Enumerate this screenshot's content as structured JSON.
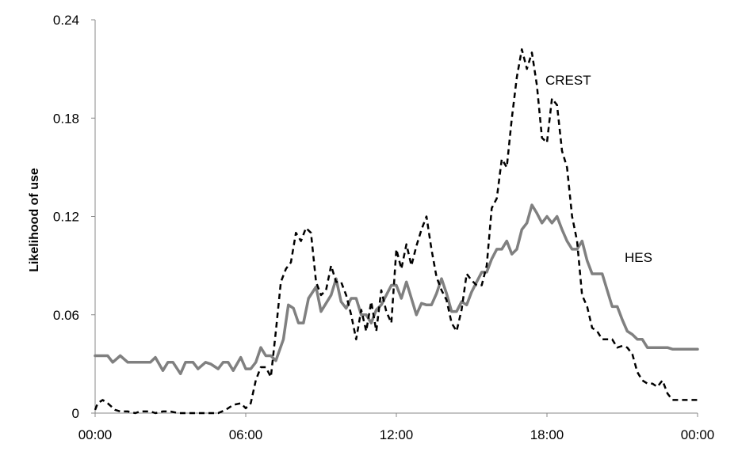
{
  "chart_data": {
    "type": "line",
    "title": "",
    "xlabel": "",
    "ylabel": "Likelihood of use",
    "x_ticks": [
      "00:00",
      "06:00",
      "12:00",
      "18:00",
      "00:00"
    ],
    "y_ticks": [
      "0",
      "0.06",
      "0.12",
      "0.18",
      "0.24"
    ],
    "xlim": [
      0,
      24
    ],
    "ylim": [
      0,
      0.24
    ],
    "grid": false,
    "legend": "none; series labelled directly on the plot",
    "series": [
      {
        "name": "HES",
        "color": "#808080",
        "style": "solid",
        "x": [
          0,
          0.5,
          0.7,
          1.0,
          1.3,
          1.6,
          1.8,
          2.2,
          2.4,
          2.7,
          2.9,
          3.1,
          3.4,
          3.6,
          3.9,
          4.1,
          4.4,
          4.6,
          4.9,
          5.1,
          5.3,
          5.5,
          5.8,
          6.0,
          6.2,
          6.4,
          6.6,
          6.8,
          7.0,
          7.2,
          7.5,
          7.7,
          7.9,
          8.1,
          8.3,
          8.5,
          8.8,
          9.0,
          9.2,
          9.4,
          9.6,
          9.8,
          10.0,
          10.2,
          10.4,
          10.6,
          10.8,
          11.0,
          11.2,
          11.4,
          11.6,
          11.8,
          12.0,
          12.2,
          12.4,
          12.6,
          12.8,
          13.0,
          13.2,
          13.4,
          13.6,
          13.8,
          14.0,
          14.2,
          14.4,
          14.6,
          14.8,
          15.0,
          15.2,
          15.4,
          15.6,
          15.8,
          16.0,
          16.2,
          16.4,
          16.6,
          16.8,
          17.0,
          17.2,
          17.4,
          17.6,
          17.8,
          18.0,
          18.2,
          18.4,
          18.6,
          18.8,
          19.0,
          19.2,
          19.4,
          19.6,
          19.8,
          20.0,
          20.2,
          20.4,
          20.6,
          20.8,
          21.0,
          21.2,
          21.4,
          21.6,
          21.8,
          22.0,
          22.2,
          22.4,
          22.6,
          22.8,
          23.0,
          23.2,
          23.4,
          23.6,
          24.0
        ],
        "values": [
          0.035,
          0.035,
          0.031,
          0.035,
          0.031,
          0.031,
          0.031,
          0.031,
          0.034,
          0.026,
          0.031,
          0.031,
          0.024,
          0.031,
          0.031,
          0.027,
          0.031,
          0.03,
          0.027,
          0.031,
          0.031,
          0.026,
          0.034,
          0.027,
          0.027,
          0.031,
          0.04,
          0.035,
          0.035,
          0.032,
          0.045,
          0.066,
          0.064,
          0.055,
          0.055,
          0.07,
          0.077,
          0.062,
          0.067,
          0.072,
          0.082,
          0.068,
          0.064,
          0.07,
          0.07,
          0.06,
          0.06,
          0.055,
          0.063,
          0.066,
          0.072,
          0.078,
          0.078,
          0.07,
          0.08,
          0.07,
          0.06,
          0.067,
          0.066,
          0.066,
          0.073,
          0.082,
          0.073,
          0.062,
          0.062,
          0.068,
          0.066,
          0.074,
          0.08,
          0.086,
          0.086,
          0.094,
          0.1,
          0.1,
          0.105,
          0.097,
          0.1,
          0.112,
          0.116,
          0.127,
          0.122,
          0.116,
          0.12,
          0.116,
          0.12,
          0.112,
          0.105,
          0.1,
          0.1,
          0.105,
          0.093,
          0.085,
          0.085,
          0.085,
          0.075,
          0.065,
          0.065,
          0.057,
          0.05,
          0.048,
          0.045,
          0.045,
          0.04,
          0.04,
          0.04,
          0.04,
          0.04,
          0.039,
          0.039,
          0.039,
          0.039,
          0.039
        ]
      },
      {
        "name": "CREST",
        "color": "#000000",
        "style": "dashed",
        "x": [
          0,
          0.1,
          0.3,
          0.5,
          0.8,
          1.0,
          1.3,
          1.6,
          1.8,
          2.2,
          2.4,
          2.7,
          3.0,
          3.3,
          3.6,
          3.9,
          4.3,
          4.6,
          4.9,
          5.2,
          5.5,
          5.8,
          6.0,
          6.2,
          6.4,
          6.6,
          6.8,
          7.0,
          7.2,
          7.4,
          7.6,
          7.8,
          8.0,
          8.2,
          8.4,
          8.6,
          8.8,
          9.0,
          9.2,
          9.4,
          9.6,
          9.8,
          10.0,
          10.2,
          10.4,
          10.6,
          10.8,
          11.0,
          11.2,
          11.4,
          11.6,
          11.8,
          12.0,
          12.2,
          12.4,
          12.6,
          12.8,
          13.0,
          13.2,
          13.4,
          13.6,
          13.8,
          14.0,
          14.2,
          14.4,
          14.6,
          14.8,
          15.0,
          15.2,
          15.4,
          15.6,
          15.8,
          16.0,
          16.2,
          16.4,
          16.6,
          16.8,
          17.0,
          17.2,
          17.4,
          17.6,
          17.8,
          18.0,
          18.2,
          18.4,
          18.6,
          18.8,
          19.0,
          19.2,
          19.4,
          19.6,
          19.8,
          20.0,
          20.2,
          20.4,
          20.6,
          20.8,
          21.0,
          21.2,
          21.4,
          21.6,
          21.8,
          22.0,
          22.2,
          22.4,
          22.6,
          22.8,
          23.0,
          23.2,
          23.4,
          23.6,
          23.8,
          24.0
        ],
        "values": [
          0.002,
          0.006,
          0.008,
          0.006,
          0.002,
          0.001,
          0.001,
          0.0,
          0.001,
          0.001,
          0.0,
          0.001,
          0.001,
          0.0,
          0.0,
          0.0,
          0.0,
          0.0,
          0.0,
          0.002,
          0.005,
          0.006,
          0.003,
          0.006,
          0.02,
          0.028,
          0.028,
          0.022,
          0.05,
          0.08,
          0.088,
          0.092,
          0.11,
          0.105,
          0.113,
          0.11,
          0.08,
          0.072,
          0.075,
          0.09,
          0.08,
          0.08,
          0.072,
          0.06,
          0.045,
          0.063,
          0.05,
          0.068,
          0.05,
          0.075,
          0.062,
          0.055,
          0.1,
          0.088,
          0.103,
          0.09,
          0.102,
          0.112,
          0.12,
          0.1,
          0.083,
          0.075,
          0.069,
          0.055,
          0.05,
          0.063,
          0.085,
          0.081,
          0.078,
          0.078,
          0.09,
          0.125,
          0.131,
          0.155,
          0.15,
          0.18,
          0.205,
          0.222,
          0.21,
          0.22,
          0.2,
          0.168,
          0.165,
          0.192,
          0.188,
          0.16,
          0.15,
          0.12,
          0.105,
          0.072,
          0.065,
          0.052,
          0.05,
          0.045,
          0.045,
          0.045,
          0.04,
          0.041,
          0.04,
          0.036,
          0.025,
          0.02,
          0.018,
          0.018,
          0.016,
          0.02,
          0.012,
          0.008,
          0.008,
          0.008,
          0.008,
          0.008,
          0.008
        ]
      }
    ],
    "annotations": [
      {
        "text": "CREST",
        "series": "CREST"
      },
      {
        "text": "HES",
        "series": "HES"
      }
    ]
  }
}
